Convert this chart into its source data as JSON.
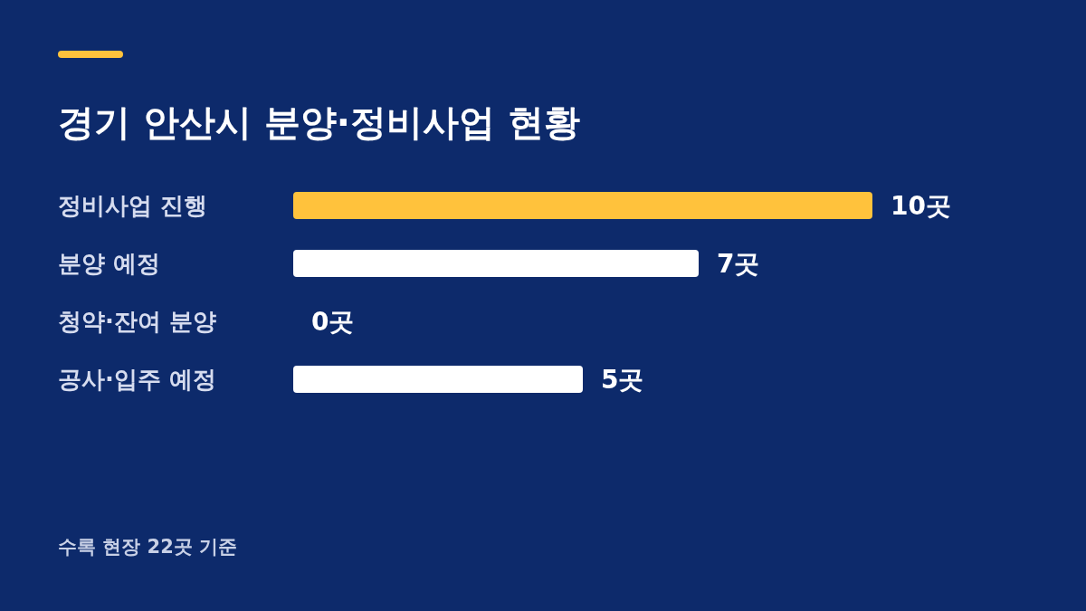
{
  "chart_data": {
    "type": "bar",
    "orientation": "horizontal",
    "title": "경기 안산시 분양·정비사업 현황",
    "categories": [
      "정비사업 진행",
      "분양 예정",
      "청약·잔여 분양",
      "공사·입주 예정"
    ],
    "values": [
      10,
      7,
      0,
      5
    ],
    "colors": [
      "#ffc23c",
      "#ffffff",
      "#ffffff",
      "#ffffff"
    ],
    "value_labels": [
      "10곳",
      "7곳",
      "0곳",
      "5곳"
    ],
    "annotations": [
      "수록 현장 22곳 기준"
    ]
  }
}
